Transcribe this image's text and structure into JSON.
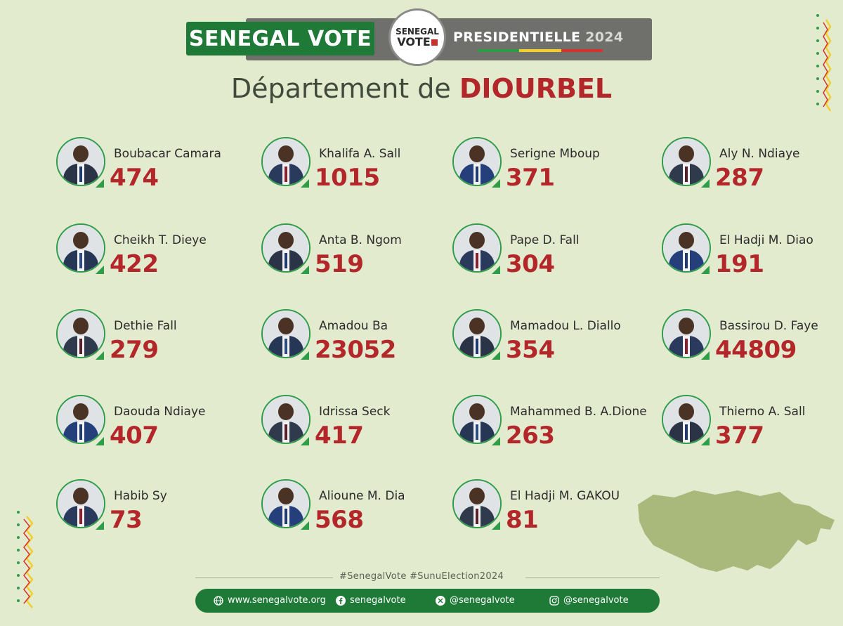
{
  "header": {
    "brand": "SENEGAL VOTE",
    "logo_top": "SENEGAL",
    "logo_bottom": "VOTE",
    "election": "PRESIDENTIELLE",
    "year": "2024"
  },
  "title": {
    "prefix": "Département de",
    "department": "DIOURBEL"
  },
  "colors": {
    "green": "#1f7a38",
    "red": "#b3272a",
    "gray": "#6f6f6b",
    "background": "#e3ebcf",
    "flag_green": "#2f9c48",
    "flag_yellow": "#f2cf2e",
    "flag_red": "#d3322d"
  },
  "candidates": [
    {
      "name": "Boubacar Camara",
      "votes": "474"
    },
    {
      "name": "Khalifa A. Sall",
      "votes": "1015"
    },
    {
      "name": "Serigne Mboup",
      "votes": "371"
    },
    {
      "name": "Aly N. Ndiaye",
      "votes": "287"
    },
    {
      "name": "Cheikh T. Dieye",
      "votes": "422"
    },
    {
      "name": "Anta B. Ngom",
      "votes": "519"
    },
    {
      "name": "Pape D. Fall",
      "votes": "304"
    },
    {
      "name": "El Hadji M. Diao",
      "votes": "191"
    },
    {
      "name": "Dethie Fall",
      "votes": "279"
    },
    {
      "name": "Amadou Ba",
      "votes": "23052"
    },
    {
      "name": "Mamadou L. Diallo",
      "votes": "354"
    },
    {
      "name": "Bassirou D. Faye",
      "votes": "44809"
    },
    {
      "name": "Daouda Ndiaye",
      "votes": "407"
    },
    {
      "name": "Idrissa Seck",
      "votes": "417"
    },
    {
      "name": "Mahammed B. A.Dione",
      "votes": "263"
    },
    {
      "name": "Thierno A. Sall",
      "votes": "377"
    },
    {
      "name": "Habib Sy",
      "votes": "73"
    },
    {
      "name": "Alioune M. Dia",
      "votes": "568"
    },
    {
      "name": "El Hadji M. GAKOU",
      "votes": "81"
    }
  ],
  "hashtags": "#SenegalVote   #SunuElection2024",
  "footer": {
    "website": "www.senegalvote.org",
    "facebook": "senegalvote",
    "x": "@senegalvote",
    "instagram": "@senegalvote"
  }
}
